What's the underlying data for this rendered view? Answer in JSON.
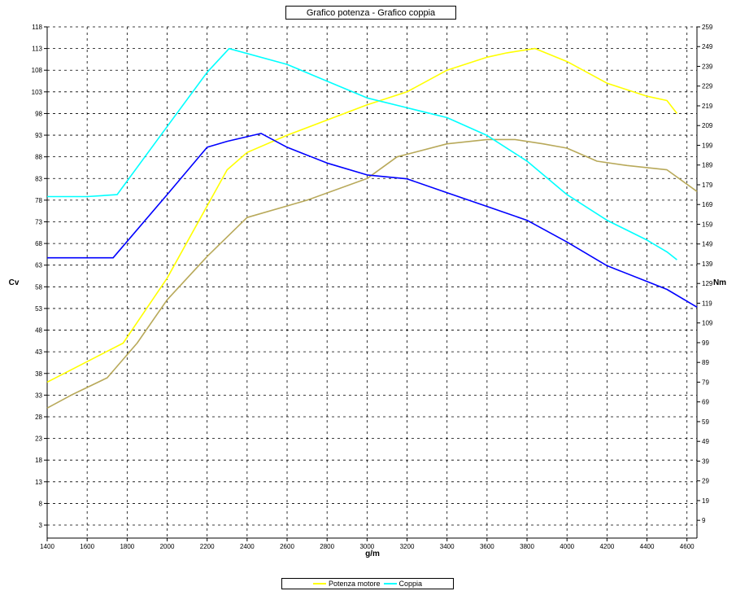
{
  "chart_data": {
    "type": "line",
    "title": "Grafico potenza - Grafico coppia",
    "xlabel": "g/m",
    "ylabel_left": "Cv",
    "ylabel_right": "Nm",
    "xlim": [
      1400,
      4650
    ],
    "ylim_left": [
      0,
      118
    ],
    "ylim_right": [
      0,
      259
    ],
    "x_ticks": [
      1400,
      1600,
      1800,
      2000,
      2200,
      2400,
      2600,
      2800,
      3000,
      3200,
      3400,
      3600,
      3800,
      4000,
      4200,
      4400,
      4600
    ],
    "y_ticks_left": [
      3,
      8,
      13,
      18,
      23,
      28,
      33,
      38,
      43,
      48,
      53,
      58,
      63,
      68,
      73,
      78,
      83,
      88,
      93,
      98,
      103,
      108,
      113,
      118
    ],
    "y_ticks_right": [
      9,
      19,
      29,
      39,
      49,
      59,
      69,
      79,
      89,
      99,
      109,
      119,
      129,
      139,
      149,
      159,
      169,
      179,
      189,
      199,
      209,
      219,
      229,
      239,
      249,
      259
    ],
    "grid": true,
    "legend": "bottom",
    "legend_entries": [
      {
        "label": "Potenza motore",
        "color": "#ffff00"
      },
      {
        "label": "Coppia",
        "color": "#00ffff"
      }
    ],
    "series": [
      {
        "axis": "left",
        "color": "#ffff00",
        "x": [
          1400,
          1780,
          2000,
          2300,
          2400,
          2600,
          3000,
          3200,
          3400,
          3600,
          3700,
          3840,
          4000,
          4200,
          4400,
          4500,
          4550
        ],
        "values": [
          36,
          45,
          60,
          85,
          89,
          93,
          100,
          103,
          108,
          111,
          112,
          113,
          110,
          105,
          102,
          101,
          98
        ]
      },
      {
        "axis": "left",
        "color": "#b8a95a",
        "x": [
          1400,
          1520,
          1700,
          1850,
          2000,
          2200,
          2400,
          2700,
          3000,
          3150,
          3400,
          3600,
          3740,
          3880,
          4000,
          4150,
          4300,
          4500,
          4650
        ],
        "values": [
          30,
          33,
          37,
          45,
          55,
          65,
          74,
          78,
          83,
          88,
          91,
          92,
          92,
          91,
          90,
          87,
          86,
          85,
          80
        ]
      },
      {
        "axis": "right",
        "color": "#00ffff",
        "x": [
          1400,
          1600,
          1750,
          1960,
          2200,
          2310,
          2600,
          3000,
          3200,
          3400,
          3600,
          3800,
          4000,
          4200,
          4400,
          4500,
          4550
        ],
        "values": [
          173,
          173,
          174,
          203,
          236,
          248,
          240,
          223,
          218,
          213,
          204,
          191,
          174,
          161,
          151,
          145,
          141
        ]
      },
      {
        "axis": "right",
        "color": "#0000ff",
        "x": [
          1400,
          1730,
          2000,
          2200,
          2300,
          2470,
          2600,
          2800,
          3000,
          3200,
          3400,
          3600,
          3800,
          4000,
          4200,
          4400,
          4500,
          4650
        ],
        "values": [
          142,
          142,
          174,
          198,
          201,
          205,
          198,
          190,
          184,
          182,
          175,
          168,
          161,
          150,
          138,
          130,
          126,
          117
        ]
      }
    ]
  }
}
